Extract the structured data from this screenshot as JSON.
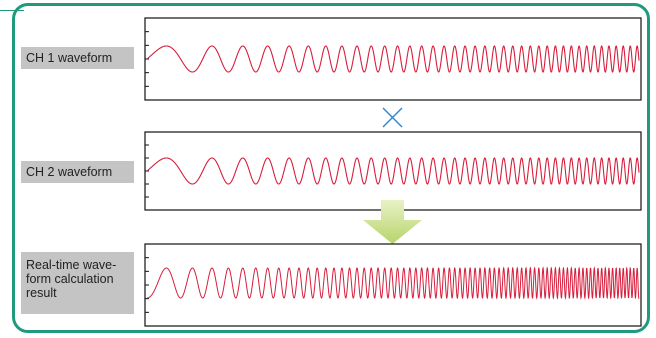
{
  "labels": {
    "ch1": "CH 1 waveform",
    "ch2": "CH 2 waveform",
    "result": "Real-time wave-\nform calculation\nresult"
  },
  "colors": {
    "frame": "#1f9a7c",
    "waveform": "#d81e3c",
    "operator": "#2e86d6",
    "arrow": "#c8de8a",
    "label_bg": "#c4c4c4"
  },
  "operator_icon": "multiply-icon",
  "arrow_icon": "down-arrow-icon",
  "waveforms": {
    "ch1": {
      "type": "chirp-sine",
      "start_cycles_per_unit": 1.0,
      "end_cycles_per_unit": 4.0
    },
    "ch2": {
      "type": "chirp-sine",
      "start_cycles_per_unit": 1.0,
      "end_cycles_per_unit": 4.0
    },
    "result": {
      "type": "product-of-ch1-ch2"
    }
  }
}
